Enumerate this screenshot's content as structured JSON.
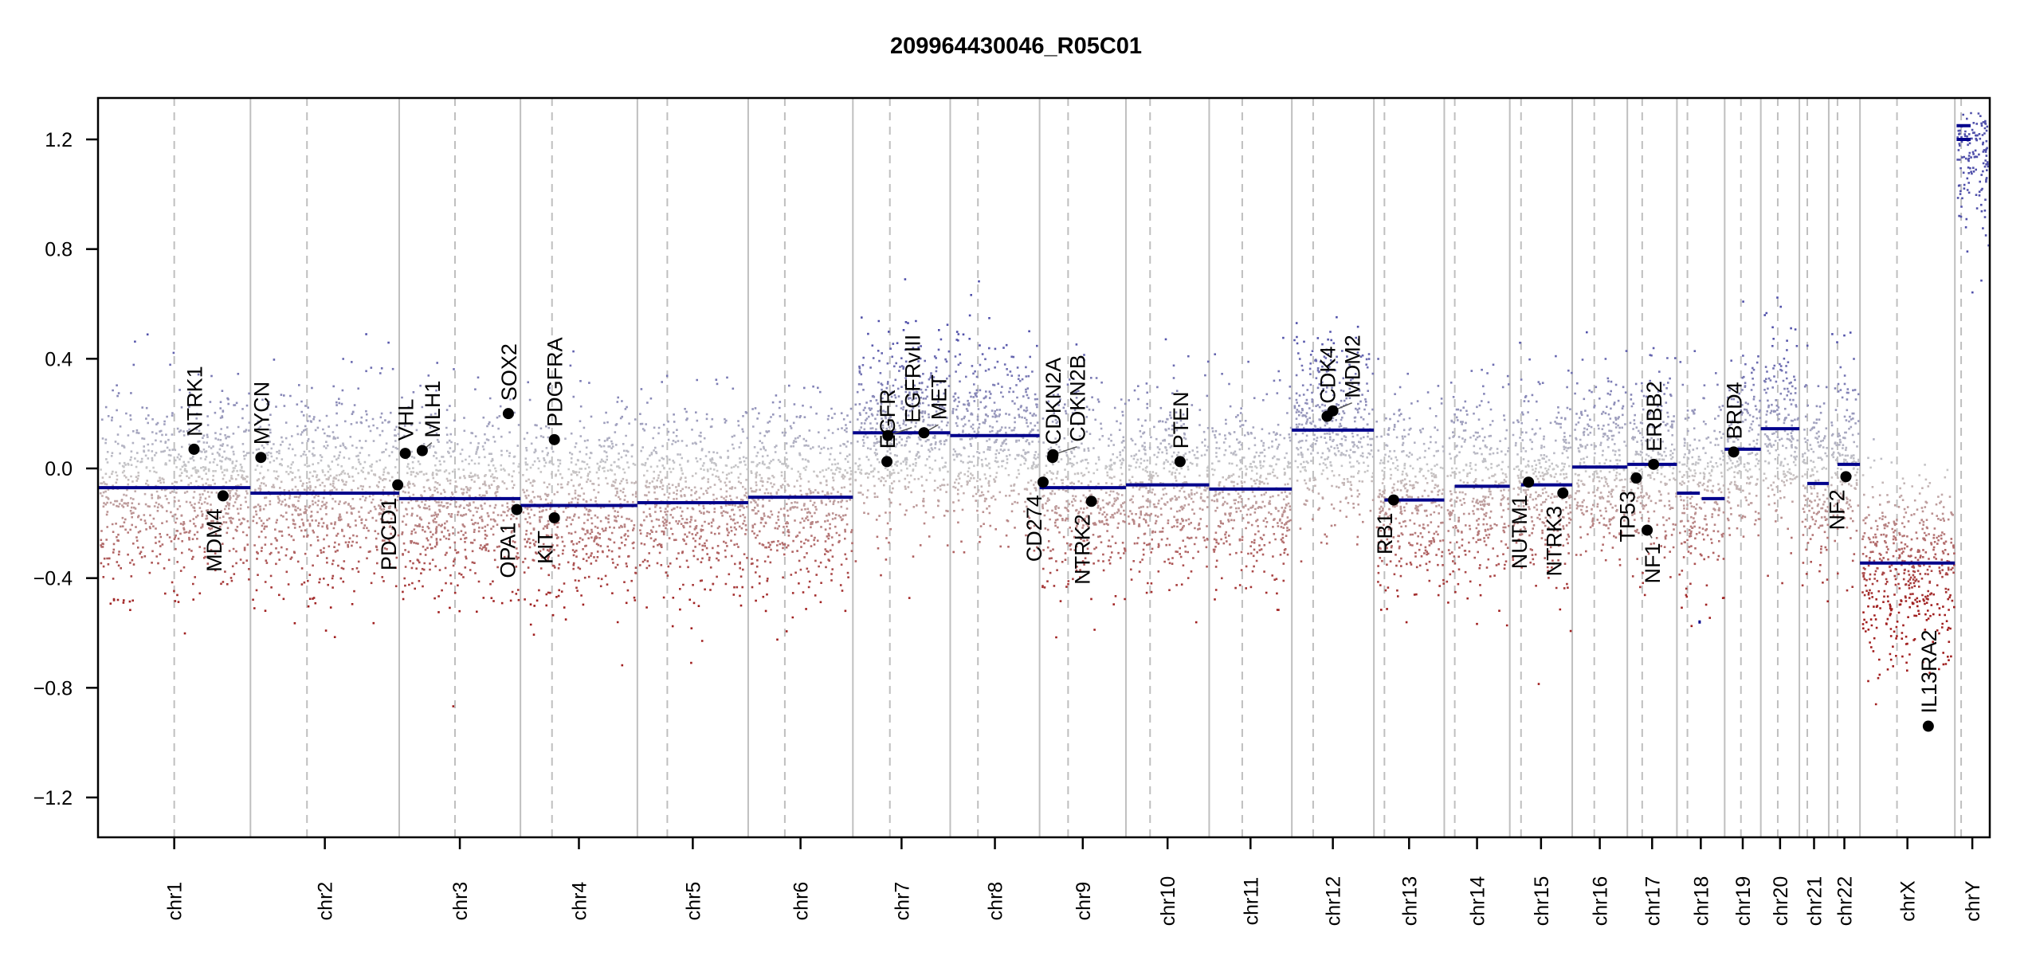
{
  "chart_data": {
    "type": "scatter",
    "title": "209964430046_R05C01",
    "xlabel": "",
    "ylabel": "",
    "ylim": [
      -1.35,
      1.35
    ],
    "yticks": [
      1.2,
      0.8,
      0.4,
      0.0,
      -0.4,
      -0.8,
      -1.2
    ],
    "ytick_labels": [
      "1.2",
      "0.8",
      "0.4",
      "0.0",
      "−0.4",
      "−0.8",
      "−1.2"
    ],
    "grid": false,
    "colors": {
      "segment": "#00008b",
      "gain": "#5c5cb0",
      "neutral": "#c8c8c8",
      "loss": "#a02020",
      "chrom_line": "#bfbfbf",
      "gene_dot": "#000000"
    },
    "chromosomes": [
      {
        "name": "chr1",
        "length": 249,
        "centromere": 0.5,
        "segments": [
          {
            "start": 0,
            "end": 1,
            "value": -0.07
          }
        ]
      },
      {
        "name": "chr2",
        "length": 243,
        "centromere": 0.38,
        "segments": [
          {
            "start": 0,
            "end": 1,
            "value": -0.09
          }
        ]
      },
      {
        "name": "chr3",
        "length": 198,
        "centromere": 0.46,
        "segments": [
          {
            "start": 0,
            "end": 1,
            "value": -0.11
          }
        ]
      },
      {
        "name": "chr4",
        "length": 191,
        "centromere": 0.27,
        "segments": [
          {
            "start": 0,
            "end": 1,
            "value": -0.135
          }
        ]
      },
      {
        "name": "chr5",
        "length": 181,
        "centromere": 0.27,
        "segments": [
          {
            "start": 0,
            "end": 1,
            "value": -0.125
          }
        ]
      },
      {
        "name": "chr6",
        "length": 171,
        "centromere": 0.35,
        "segments": [
          {
            "start": 0,
            "end": 1,
            "value": -0.105
          }
        ]
      },
      {
        "name": "chr7",
        "length": 159,
        "centromere": 0.38,
        "segments": [
          {
            "start": 0,
            "end": 1,
            "value": 0.13
          }
        ]
      },
      {
        "name": "chr8",
        "length": 146,
        "centromere": 0.31,
        "segments": [
          {
            "start": 0,
            "end": 1,
            "value": 0.12
          }
        ]
      },
      {
        "name": "chr9",
        "length": 141,
        "centromere": 0.33,
        "segments": [
          {
            "start": 0,
            "end": 1,
            "value": -0.07
          }
        ]
      },
      {
        "name": "chr10",
        "length": 136,
        "centromere": 0.29,
        "segments": [
          {
            "start": 0,
            "end": 1,
            "value": -0.06
          }
        ]
      },
      {
        "name": "chr11",
        "length": 135,
        "centromere": 0.4,
        "segments": [
          {
            "start": 0,
            "end": 1,
            "value": -0.075
          }
        ]
      },
      {
        "name": "chr12",
        "length": 134,
        "centromere": 0.26,
        "segments": [
          {
            "start": 0,
            "end": 1,
            "value": 0.14
          }
        ]
      },
      {
        "name": "chr13",
        "length": 115,
        "centromere": 0.15,
        "segments": [
          {
            "start": 0.15,
            "end": 1,
            "value": -0.115
          }
        ]
      },
      {
        "name": "chr14",
        "length": 107,
        "centromere": 0.16,
        "segments": [
          {
            "start": 0.16,
            "end": 1,
            "value": -0.065
          }
        ]
      },
      {
        "name": "chr15",
        "length": 102,
        "centromere": 0.18,
        "segments": [
          {
            "start": 0.18,
            "end": 1,
            "value": -0.06
          }
        ]
      },
      {
        "name": "chr16",
        "length": 90,
        "centromere": 0.4,
        "segments": [
          {
            "start": 0,
            "end": 1,
            "value": 0.005
          }
        ]
      },
      {
        "name": "chr17",
        "length": 81,
        "centromere": 0.3,
        "segments": [
          {
            "start": 0,
            "end": 1,
            "value": 0.015
          }
        ]
      },
      {
        "name": "chr18",
        "length": 78,
        "centromere": 0.22,
        "segments": [
          {
            "start": 0,
            "end": 0.48,
            "value": -0.09
          },
          {
            "start": 0.52,
            "end": 1,
            "value": -0.11
          },
          {
            "start": 0.45,
            "end": 0.5,
            "value": -0.56
          }
        ]
      },
      {
        "name": "chr19",
        "length": 59,
        "centromere": 0.45,
        "segments": [
          {
            "start": 0,
            "end": 1,
            "value": 0.07
          }
        ]
      },
      {
        "name": "chr20",
        "length": 63,
        "centromere": 0.44,
        "segments": [
          {
            "start": 0,
            "end": 1,
            "value": 0.145
          }
        ]
      },
      {
        "name": "chr21",
        "length": 48,
        "centromere": 0.27,
        "segments": [
          {
            "start": 0.27,
            "end": 1,
            "value": -0.055
          }
        ]
      },
      {
        "name": "chr22",
        "length": 51,
        "centromere": 0.28,
        "segments": [
          {
            "start": 0.28,
            "end": 1,
            "value": 0.015
          }
        ]
      },
      {
        "name": "chrX",
        "length": 155,
        "centromere": 0.39,
        "segments": [
          {
            "start": 0,
            "end": 1,
            "value": -0.345
          }
        ]
      },
      {
        "name": "chrY",
        "length": 57,
        "centromere": 0.18,
        "segments": [
          {
            "start": 0.05,
            "end": 0.45,
            "value": 1.2
          },
          {
            "start": 0.05,
            "end": 0.45,
            "value": 1.25
          }
        ]
      }
    ],
    "genes": [
      {
        "name": "NTRK1",
        "chrom": "chr1",
        "pos": 0.63,
        "value": 0.07,
        "label_side": "above"
      },
      {
        "name": "MDM4",
        "chrom": "chr1",
        "pos": 0.82,
        "value": -0.1,
        "label_side": "below"
      },
      {
        "name": "MYCN",
        "chrom": "chr2",
        "pos": 0.07,
        "value": 0.04,
        "label_side": "above"
      },
      {
        "name": "PDCD1",
        "chrom": "chr2",
        "pos": 0.99,
        "value": -0.06,
        "label_side": "below"
      },
      {
        "name": "VHL",
        "chrom": "chr3",
        "pos": 0.05,
        "value": 0.055,
        "label_side": "above"
      },
      {
        "name": "MLH1",
        "chrom": "chr3",
        "pos": 0.19,
        "value": 0.065,
        "label_side": "above"
      },
      {
        "name": "SOX2",
        "chrom": "chr3",
        "pos": 0.9,
        "value": 0.2,
        "label_side": "above"
      },
      {
        "name": "OPA1",
        "chrom": "chr3",
        "pos": 0.97,
        "value": -0.15,
        "label_side": "below"
      },
      {
        "name": "PDGFRA",
        "chrom": "chr4",
        "pos": 0.29,
        "value": 0.105,
        "label_side": "above"
      },
      {
        "name": "KIT",
        "chrom": "chr4",
        "pos": 0.29,
        "value": -0.18,
        "label_side": "below"
      },
      {
        "name": "EGFR",
        "chrom": "chr7",
        "pos": 0.35,
        "value": 0.025,
        "label_side": "above"
      },
      {
        "name": "EGFRvIII",
        "chrom": "chr7",
        "pos": 0.36,
        "value": 0.12,
        "label_side": "above"
      },
      {
        "name": "MET",
        "chrom": "chr7",
        "pos": 0.73,
        "value": 0.13,
        "label_side": "above"
      },
      {
        "name": "CD274",
        "chrom": "chr9",
        "pos": 0.04,
        "value": -0.05,
        "label_side": "below"
      },
      {
        "name": "CDKN2A",
        "chrom": "chr9",
        "pos": 0.15,
        "value": 0.04,
        "label_side": "above"
      },
      {
        "name": "CDKN2B",
        "chrom": "chr9",
        "pos": 0.155,
        "value": 0.05,
        "label_side": "above"
      },
      {
        "name": "NTRK2",
        "chrom": "chr9",
        "pos": 0.6,
        "value": -0.12,
        "label_side": "below"
      },
      {
        "name": "PTEN",
        "chrom": "chr10",
        "pos": 0.65,
        "value": 0.025,
        "label_side": "above"
      },
      {
        "name": "CDK4",
        "chrom": "chr12",
        "pos": 0.43,
        "value": 0.19,
        "label_side": "above"
      },
      {
        "name": "MDM2",
        "chrom": "chr12",
        "pos": 0.5,
        "value": 0.21,
        "label_side": "above"
      },
      {
        "name": "RB1",
        "chrom": "chr13",
        "pos": 0.28,
        "value": -0.115,
        "label_side": "below"
      },
      {
        "name": "NUTM1",
        "chrom": "chr15",
        "pos": 0.3,
        "value": -0.05,
        "label_side": "below"
      },
      {
        "name": "NTRK3",
        "chrom": "chr15",
        "pos": 0.85,
        "value": -0.09,
        "label_side": "below"
      },
      {
        "name": "TP53",
        "chrom": "chr17",
        "pos": 0.18,
        "value": -0.035,
        "label_side": "below"
      },
      {
        "name": "NF1",
        "chrom": "chr17",
        "pos": 0.4,
        "value": -0.225,
        "label_side": "below"
      },
      {
        "name": "ERBB2",
        "chrom": "chr17",
        "pos": 0.53,
        "value": 0.015,
        "label_side": "above"
      },
      {
        "name": "BRD4",
        "chrom": "chr19",
        "pos": 0.25,
        "value": 0.06,
        "label_side": "above"
      },
      {
        "name": "NF2",
        "chrom": "chr22",
        "pos": 0.55,
        "value": -0.03,
        "label_side": "below"
      },
      {
        "name": "IL13RA2",
        "chrom": "chrX",
        "pos": 0.72,
        "value": -0.94,
        "label_side": "above"
      }
    ]
  }
}
